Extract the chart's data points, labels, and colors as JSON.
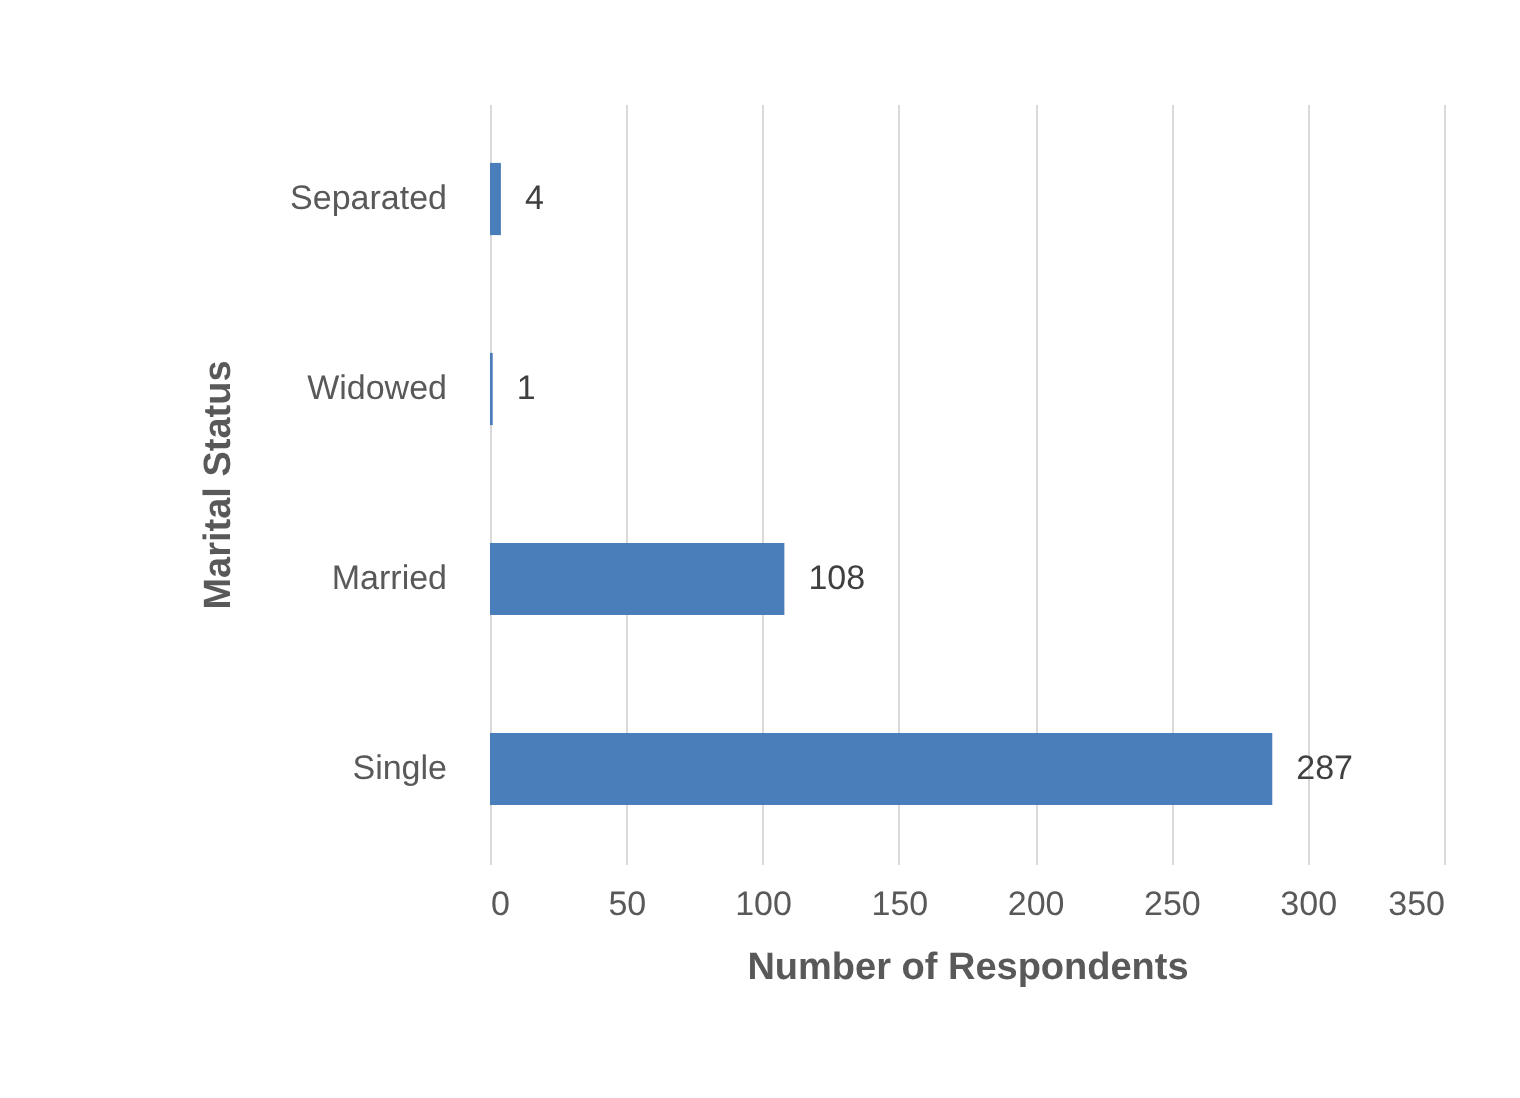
{
  "chart_data": {
    "type": "bar",
    "orientation": "horizontal",
    "xlabel": "Number of Respondents",
    "ylabel": "Marital Status",
    "categories": [
      "Separated",
      "Widowed",
      "Married",
      "Single"
    ],
    "values": [
      4,
      1,
      108,
      287
    ],
    "color": "#4a7ebb",
    "xlim": [
      0,
      350
    ],
    "xticks": [
      0,
      50,
      100,
      150,
      200,
      250,
      300,
      350
    ],
    "grid": "x",
    "data_labels": true
  }
}
